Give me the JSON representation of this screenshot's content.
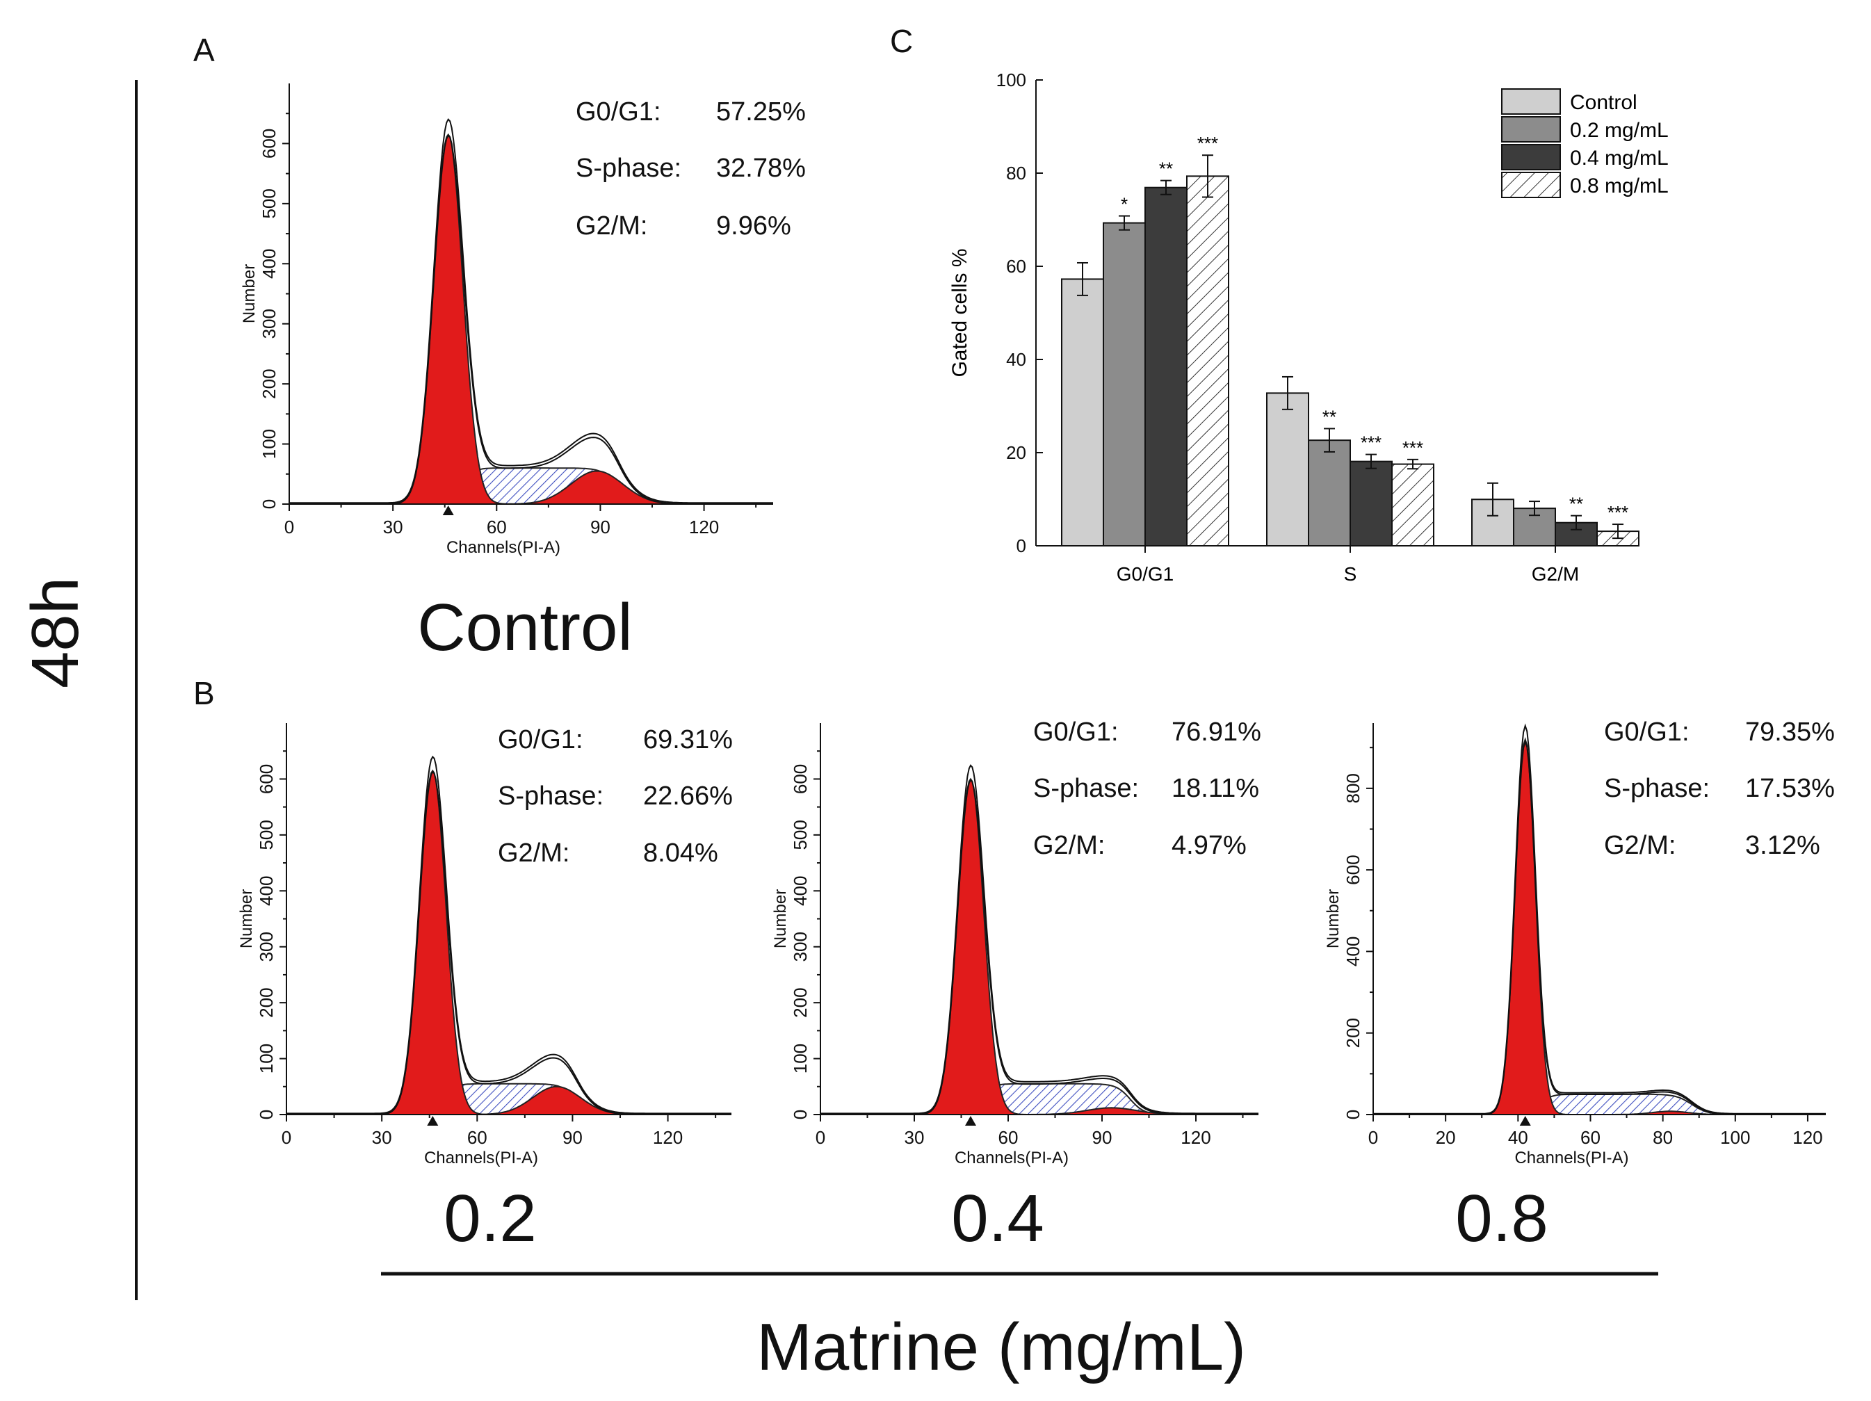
{
  "figure": {
    "side_label": "48h",
    "bottom_title": "Matrine (mg/mL)",
    "panel_letters": [
      "A",
      "B",
      "C"
    ]
  },
  "colors": {
    "g1_fill": "#e11b1b",
    "s_fill": "#3f4fc0",
    "g2_fill": "#e11b1b",
    "control_bar": "#cfcfcf",
    "dose02_bar": "#8c8c8c",
    "dose04_bar": "#3c3c3c",
    "dose08_bar": "#ffffff"
  },
  "histograms": [
    {
      "id": "control",
      "caption": "Control",
      "xlabel": "Channels(PI-A)",
      "ylabel": "Number",
      "x_ticks": [
        0,
        30,
        60,
        90,
        120
      ],
      "y_ticks": [
        0,
        100,
        200,
        300,
        400,
        500,
        600
      ],
      "xlim": [
        0,
        140
      ],
      "ylim": [
        0,
        700
      ],
      "g1": {
        "peak_x": 46,
        "peak_y": 615,
        "sigma": 4.2
      },
      "g2": {
        "peak_x": 89,
        "peak_y": 55,
        "sigma": 7.5
      },
      "s_range": [
        46,
        89
      ],
      "s_level": 60,
      "stats": [
        {
          "label": "G0/G1:",
          "value": "57.25%"
        },
        {
          "label": "S-phase:",
          "value": "32.78%"
        },
        {
          "label": "G2/M:",
          "value": "9.96%"
        }
      ]
    },
    {
      "id": "dose-0.2",
      "caption": "0.2",
      "xlabel": "Channels(PI-A)",
      "ylabel": "Number",
      "x_ticks": [
        0,
        30,
        60,
        90,
        120
      ],
      "y_ticks": [
        0,
        100,
        200,
        300,
        400,
        500,
        600
      ],
      "xlim": [
        0,
        140
      ],
      "ylim": [
        0,
        700
      ],
      "g1": {
        "peak_x": 46,
        "peak_y": 615,
        "sigma": 4.2
      },
      "g2": {
        "peak_x": 85,
        "peak_y": 50,
        "sigma": 7.5
      },
      "s_range": [
        46,
        85
      ],
      "s_level": 55,
      "stats": [
        {
          "label": "G0/G1:",
          "value": "69.31%"
        },
        {
          "label": "S-phase:",
          "value": "22.66%"
        },
        {
          "label": "G2/M:",
          "value": "8.04%"
        }
      ]
    },
    {
      "id": "dose-0.4",
      "caption": "0.4",
      "xlabel": "Channels(PI-A)",
      "ylabel": "Number",
      "x_ticks": [
        0,
        30,
        60,
        90,
        120
      ],
      "y_ticks": [
        0,
        100,
        200,
        300,
        400,
        500,
        600
      ],
      "xlim": [
        0,
        140
      ],
      "ylim": [
        0,
        700
      ],
      "g1": {
        "peak_x": 48,
        "peak_y": 600,
        "sigma": 4.2
      },
      "g2": {
        "peak_x": 93,
        "peak_y": 12,
        "sigma": 8
      },
      "s_range": [
        48,
        93
      ],
      "s_level": 55,
      "stats": [
        {
          "label": "G0/G1:",
          "value": "76.91%"
        },
        {
          "label": "S-phase:",
          "value": "18.11%"
        },
        {
          "label": "G2/M:",
          "value": "4.97%"
        }
      ]
    },
    {
      "id": "dose-0.8",
      "caption": "0.8",
      "xlabel": "Channels(PI-A)",
      "ylabel": "Number",
      "x_ticks": [
        0,
        20,
        40,
        60,
        80,
        100,
        120
      ],
      "y_ticks": [
        0,
        200,
        400,
        600,
        800
      ],
      "xlim": [
        0,
        125
      ],
      "ylim": [
        0,
        960
      ],
      "g1": {
        "peak_x": 42,
        "peak_y": 920,
        "sigma": 2.8
      },
      "g2": {
        "peak_x": 82,
        "peak_y": 8,
        "sigma": 5
      },
      "s_range": [
        42,
        82
      ],
      "s_level": 50,
      "stats": [
        {
          "label": "G0/G1:",
          "value": "79.35%"
        },
        {
          "label": "S-phase:",
          "value": "17.53%"
        },
        {
          "label": "G2/M:",
          "value": "3.12%"
        }
      ]
    }
  ],
  "chart_data": {
    "type": "bar",
    "title": "",
    "xlabel": "",
    "ylabel": "Gated cells %",
    "ylim": [
      0,
      100
    ],
    "y_ticks": [
      0,
      20,
      40,
      60,
      80,
      100
    ],
    "categories": [
      "G0/G1",
      "S",
      "G2/M"
    ],
    "series": [
      {
        "name": "Control",
        "values": [
          57.25,
          32.78,
          9.96
        ],
        "errors": [
          3.5,
          3.5,
          3.5
        ],
        "sig": [
          "",
          "",
          ""
        ]
      },
      {
        "name": "0.2 mg/mL",
        "values": [
          69.31,
          22.66,
          8.04
        ],
        "errors": [
          1.5,
          2.5,
          1.5
        ],
        "sig": [
          "*",
          "**",
          ""
        ]
      },
      {
        "name": "0.4 mg/mL",
        "values": [
          76.91,
          18.11,
          4.97
        ],
        "errors": [
          1.5,
          1.5,
          1.5
        ],
        "sig": [
          "**",
          "***",
          "**"
        ]
      },
      {
        "name": "0.8 mg/mL",
        "values": [
          79.35,
          17.53,
          3.12
        ],
        "errors": [
          4.5,
          1.0,
          1.5
        ],
        "sig": [
          "***",
          "***",
          "***"
        ]
      }
    ],
    "legend_position": "top-right"
  }
}
